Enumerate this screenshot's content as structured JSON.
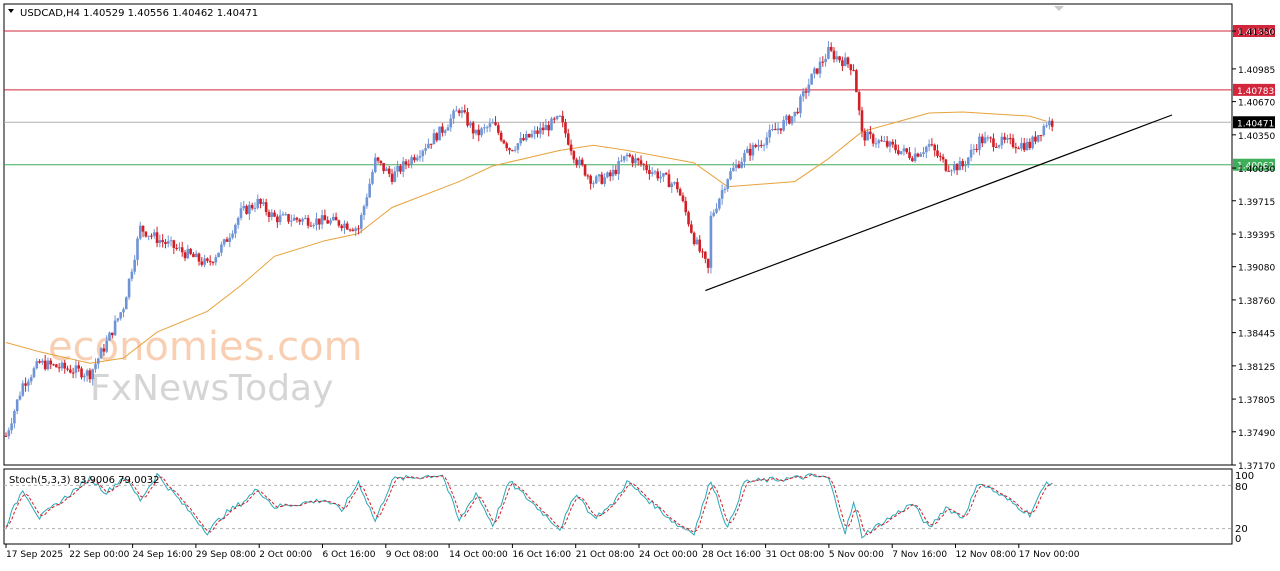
{
  "header": {
    "symbol_line": "USDCAD,H4  1.40529 1.40556 1.40462 1.40471"
  },
  "watermark": {
    "line1": "economies.com",
    "line2": "FxNewsToday"
  },
  "stochastic": {
    "label": "Stoch(5,3,3) 83.9006 79.0032",
    "levels": [
      "100",
      "80",
      "20",
      "0"
    ]
  },
  "colors": {
    "bull": "#6f94d6",
    "bear": "#d21f26",
    "ma": "#e8a23a",
    "resistance": "#d2263c",
    "support": "#3fae5a",
    "current": "#b0b0b0",
    "trendline": "#000000"
  },
  "chart_data": {
    "type": "candlestick",
    "symbol": "USDCAD",
    "timeframe": "H4",
    "ohlc_header": {
      "open": 1.40529,
      "high": 1.40556,
      "low": 1.40462,
      "close": 1.40471
    },
    "price_axis": {
      "ticks": [
        "1.41350",
        "1.40985",
        "1.40670",
        "1.40350",
        "1.40030",
        "1.39715",
        "1.39395",
        "1.39080",
        "1.38760",
        "1.38445",
        "1.38125",
        "1.37805",
        "1.37490",
        "1.37170"
      ],
      "range": [
        1.3717,
        1.4155
      ]
    },
    "time_axis": {
      "labels": [
        "17 Sep 2025",
        "22 Sep 00:00",
        "24 Sep 16:00",
        "29 Sep 08:00",
        "2 Oct 00:00",
        "6 Oct 16:00",
        "9 Oct 08:00",
        "14 Oct 00:00",
        "16 Oct 16:00",
        "21 Oct 08:00",
        "24 Oct 00:00",
        "28 Oct 16:00",
        "31 Oct 08:00",
        "5 Nov 00:00",
        "7 Nov 16:00",
        "12 Nov 08:00",
        "17 Nov 00:00"
      ]
    },
    "horizontal_levels": [
      {
        "value": 1.4135,
        "label": "1.41350",
        "role": "resistance"
      },
      {
        "value": 1.40783,
        "label": "1.40783",
        "role": "resistance"
      },
      {
        "value": 1.40471,
        "label": "1.40471",
        "role": "current"
      },
      {
        "value": 1.40062,
        "label": "1.40062",
        "role": "support"
      }
    ],
    "trendline": {
      "from_date": "28 Oct 16:00",
      "from_price": 1.3885,
      "to_date": "19 Nov",
      "to_price": 1.4055
    },
    "price_keypoints": [
      {
        "date": "17 Sep",
        "price": 1.3745
      },
      {
        "date": "18 Sep",
        "price": 1.3795
      },
      {
        "date": "19 Sep",
        "price": 1.3815
      },
      {
        "date": "22 Sep",
        "price": 1.3805
      },
      {
        "date": "23 Sep",
        "price": 1.3835
      },
      {
        "date": "24 Sep",
        "price": 1.387
      },
      {
        "date": "25 Sep",
        "price": 1.3945
      },
      {
        "date": "26 Sep",
        "price": 1.3935
      },
      {
        "date": "29 Sep",
        "price": 1.391
      },
      {
        "date": "30 Sep",
        "price": 1.393
      },
      {
        "date": "1 Oct",
        "price": 1.396
      },
      {
        "date": "2 Oct",
        "price": 1.397
      },
      {
        "date": "3 Oct",
        "price": 1.3955
      },
      {
        "date": "6 Oct",
        "price": 1.3952
      },
      {
        "date": "7 Oct",
        "price": 1.395
      },
      {
        "date": "8 Oct",
        "price": 1.3945
      },
      {
        "date": "9 Oct",
        "price": 1.401
      },
      {
        "date": "10 Oct",
        "price": 1.3995
      },
      {
        "date": "13 Oct",
        "price": 1.404
      },
      {
        "date": "14 Oct",
        "price": 1.406
      },
      {
        "date": "15 Oct",
        "price": 1.4035
      },
      {
        "date": "16 Oct",
        "price": 1.4045
      },
      {
        "date": "17 Oct",
        "price": 1.4022
      },
      {
        "date": "20 Oct",
        "price": 1.405
      },
      {
        "date": "21 Oct",
        "price": 1.401
      },
      {
        "date": "22 Oct",
        "price": 1.399
      },
      {
        "date": "23 Oct",
        "price": 1.3995
      },
      {
        "date": "24 Oct",
        "price": 1.4015
      },
      {
        "date": "27 Oct",
        "price": 1.3985
      },
      {
        "date": "28 Oct",
        "price": 1.3935
      },
      {
        "date": "28 Oct 20:00",
        "price": 1.3905
      },
      {
        "date": "29 Oct",
        "price": 1.3955
      },
      {
        "date": "30 Oct",
        "price": 1.3995
      },
      {
        "date": "31 Oct",
        "price": 1.4015
      },
      {
        "date": "3 Nov",
        "price": 1.4055
      },
      {
        "date": "4 Nov",
        "price": 1.409
      },
      {
        "date": "5 Nov",
        "price": 1.4115
      },
      {
        "date": "6 Nov",
        "price": 1.4105
      },
      {
        "date": "6 Nov 12:00",
        "price": 1.41
      },
      {
        "date": "7 Nov",
        "price": 1.4035
      },
      {
        "date": "10 Nov",
        "price": 1.4015
      },
      {
        "date": "11 Nov",
        "price": 1.4025
      },
      {
        "date": "12 Nov",
        "price": 1.4005
      },
      {
        "date": "13 Nov",
        "price": 1.4005
      },
      {
        "date": "14 Nov",
        "price": 1.403
      },
      {
        "date": "17 Nov",
        "price": 1.4025
      },
      {
        "date": "18 Nov",
        "price": 1.4047
      }
    ],
    "moving_average": [
      {
        "date": "17 Sep",
        "price": 1.3835
      },
      {
        "date": "19 Sep",
        "price": 1.3826
      },
      {
        "date": "22 Sep",
        "price": 1.3815
      },
      {
        "date": "24 Sep",
        "price": 1.382
      },
      {
        "date": "26 Sep",
        "price": 1.3845
      },
      {
        "date": "29 Sep",
        "price": 1.3865
      },
      {
        "date": "1 Oct",
        "price": 1.389
      },
      {
        "date": "3 Oct",
        "price": 1.3918
      },
      {
        "date": "6 Oct",
        "price": 1.3933
      },
      {
        "date": "8 Oct",
        "price": 1.394
      },
      {
        "date": "10 Oct",
        "price": 1.3965
      },
      {
        "date": "14 Oct",
        "price": 1.399
      },
      {
        "date": "16 Oct",
        "price": 1.4005
      },
      {
        "date": "20 Oct",
        "price": 1.402
      },
      {
        "date": "22 Oct",
        "price": 1.4025
      },
      {
        "date": "24 Oct",
        "price": 1.402
      },
      {
        "date": "28 Oct",
        "price": 1.4008
      },
      {
        "date": "30 Oct",
        "price": 1.3985
      },
      {
        "date": "3 Nov",
        "price": 1.399
      },
      {
        "date": "5 Nov",
        "price": 1.4012
      },
      {
        "date": "7 Nov",
        "price": 1.4038
      },
      {
        "date": "11 Nov",
        "price": 1.4056
      },
      {
        "date": "13 Nov",
        "price": 1.4057
      },
      {
        "date": "17 Nov",
        "price": 1.4053
      },
      {
        "date": "18 Nov",
        "price": 1.4048
      }
    ],
    "stochastic": {
      "params": "5,3,3",
      "main": 83.9006,
      "signal": 79.0032,
      "levels": [
        20,
        80
      ],
      "range": [
        0,
        100
      ],
      "main_keypoints": [
        {
          "date": "17 Sep",
          "value": 25
        },
        {
          "date": "18 Sep",
          "value": 75
        },
        {
          "date": "19 Sep",
          "value": 35
        },
        {
          "date": "22 Sep",
          "value": 90
        },
        {
          "date": "23 Sep",
          "value": 70
        },
        {
          "date": "24 Sep",
          "value": 92
        },
        {
          "date": "25 Sep",
          "value": 60
        },
        {
          "date": "26 Sep",
          "value": 95
        },
        {
          "date": "29 Sep",
          "value": 15
        },
        {
          "date": "30 Sep",
          "value": 40
        },
        {
          "date": "1 Oct",
          "value": 55
        },
        {
          "date": "2 Oct",
          "value": 75
        },
        {
          "date": "3 Oct",
          "value": 50
        },
        {
          "date": "6 Oct",
          "value": 60
        },
        {
          "date": "7 Oct",
          "value": 45
        },
        {
          "date": "8 Oct",
          "value": 85
        },
        {
          "date": "9 Oct",
          "value": 30
        },
        {
          "date": "10 Oct",
          "value": 88
        },
        {
          "date": "13 Oct",
          "value": 95
        },
        {
          "date": "14 Oct",
          "value": 30
        },
        {
          "date": "15 Oct",
          "value": 70
        },
        {
          "date": "16 Oct",
          "value": 25
        },
        {
          "date": "17 Oct",
          "value": 85
        },
        {
          "date": "20 Oct",
          "value": 20
        },
        {
          "date": "21 Oct",
          "value": 70
        },
        {
          "date": "22 Oct",
          "value": 35
        },
        {
          "date": "23 Oct",
          "value": 50
        },
        {
          "date": "24 Oct",
          "value": 85
        },
        {
          "date": "27 Oct",
          "value": 25
        },
        {
          "date": "28 Oct",
          "value": 15
        },
        {
          "date": "29 Oct",
          "value": 88
        },
        {
          "date": "30 Oct",
          "value": 20
        },
        {
          "date": "31 Oct",
          "value": 85
        },
        {
          "date": "3 Nov",
          "value": 90
        },
        {
          "date": "4 Nov",
          "value": 93
        },
        {
          "date": "5 Nov",
          "value": 90
        },
        {
          "date": "6 Nov",
          "value": 15
        },
        {
          "date": "6 Nov 12:00",
          "value": 55
        },
        {
          "date": "7 Nov",
          "value": 10
        },
        {
          "date": "10 Nov",
          "value": 55
        },
        {
          "date": "11 Nov",
          "value": 20
        },
        {
          "date": "12 Nov",
          "value": 50
        },
        {
          "date": "13 Nov",
          "value": 35
        },
        {
          "date": "14 Nov",
          "value": 85
        },
        {
          "date": "17 Nov",
          "value": 40
        },
        {
          "date": "18 Nov",
          "value": 84
        }
      ]
    }
  }
}
